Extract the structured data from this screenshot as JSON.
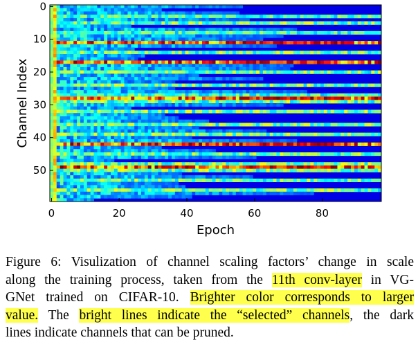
{
  "chart_data": {
    "type": "heatmap",
    "title": "",
    "xlabel": "Epoch",
    "ylabel": "Channel Index",
    "x_range": [
      0,
      97
    ],
    "y_range": [
      0,
      59
    ],
    "y_inverted": true,
    "x_ticks": [
      0,
      20,
      40,
      60,
      80
    ],
    "y_ticks": [
      0,
      10,
      20,
      30,
      40,
      50
    ],
    "colormap": "jet",
    "num_channels": 60,
    "num_epochs": 98,
    "note": "",
    "selected_channels": [
      3,
      5,
      8,
      11,
      14,
      17,
      20,
      24,
      27,
      28,
      29,
      32,
      36,
      39,
      42,
      45,
      48,
      49,
      50,
      53,
      56
    ],
    "bright_channels": [
      11,
      17,
      28,
      42,
      49
    ],
    "medium_channels": [
      5,
      14,
      20,
      24,
      29,
      32,
      36,
      39,
      45,
      48,
      50,
      53,
      56
    ],
    "pruned_channels": [
      0,
      1,
      2,
      4,
      6,
      7,
      9,
      10,
      12,
      13,
      15,
      16,
      18,
      19,
      21,
      22,
      23,
      25,
      26,
      30,
      31,
      33,
      34,
      35,
      37,
      38,
      40,
      41,
      43,
      44,
      46,
      47,
      51,
      52,
      54,
      55,
      57,
      58,
      59
    ]
  },
  "caption": {
    "lines": [
      [
        {
          "text": "Figure 6: Visulization of channel scaling factors’ change in scale",
          "hl": false
        }
      ],
      [
        {
          "text": "along the training process, taken from the ",
          "hl": false
        },
        {
          "text": "11th conv-layer",
          "hl": true
        },
        {
          "text": " in VG-",
          "hl": false
        }
      ],
      [
        {
          "text": "GNet trained on CIFAR-10. ",
          "hl": false
        },
        {
          "text": "Brighter color corresponds to larger",
          "hl": true
        }
      ],
      [
        {
          "text": "value.",
          "hl": true
        },
        {
          "text": " The ",
          "hl": false
        },
        {
          "text": "bright lines indicate the “selected” channels",
          "hl": true
        },
        {
          "text": ", the dark",
          "hl": false
        }
      ],
      [
        {
          "text": "lines indicate channels that can be pruned.",
          "hl": false
        }
      ]
    ]
  }
}
